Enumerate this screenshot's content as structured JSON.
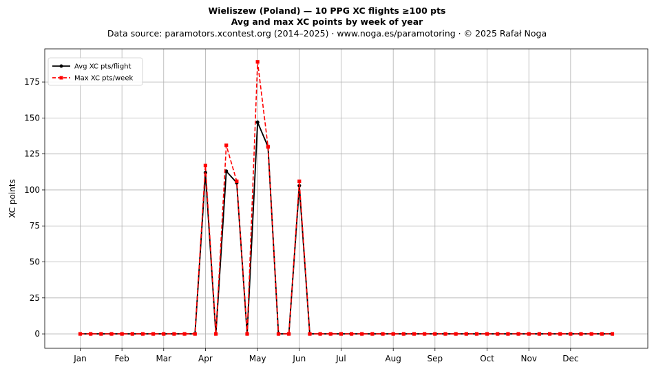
{
  "header": {
    "title": "Wieliszew (Poland)  —  10 PPG XC flights ≥100 pts",
    "subtitle": "Avg and max XC points by week of year",
    "source": "Data source: paramotors.xcontest.org (2014–2025)  ·  www.noga.es/paramotoring  ·  © 2025 Rafał Noga"
  },
  "chart_data": {
    "type": "line",
    "title": "Wieliszew (Poland)  —  10 PPG XC flights ≥100 pts",
    "subtitle": "Avg and max XC points by week of year",
    "xlabel": "",
    "ylabel": "XC points",
    "ylim": [
      -10,
      198
    ],
    "yticks": [
      0,
      25,
      50,
      75,
      100,
      125,
      150,
      175
    ],
    "xlim": [
      -2.4,
      55.4
    ],
    "x": [
      1,
      2,
      3,
      4,
      5,
      6,
      7,
      8,
      9,
      10,
      11,
      12,
      13,
      14,
      15,
      16,
      17,
      18,
      19,
      20,
      21,
      22,
      23,
      24,
      25,
      26,
      27,
      28,
      29,
      30,
      31,
      32,
      33,
      34,
      35,
      36,
      37,
      38,
      39,
      40,
      41,
      42,
      43,
      44,
      45,
      46,
      47,
      48,
      49,
      50,
      51,
      52
    ],
    "month_ticks": [
      {
        "label": "Jan",
        "week": 1
      },
      {
        "label": "Feb",
        "week": 5
      },
      {
        "label": "Mar",
        "week": 9
      },
      {
        "label": "Apr",
        "week": 13
      },
      {
        "label": "May",
        "week": 18
      },
      {
        "label": "Jun",
        "week": 22
      },
      {
        "label": "Jul",
        "week": 26
      },
      {
        "label": "Aug",
        "week": 31
      },
      {
        "label": "Sep",
        "week": 35
      },
      {
        "label": "Oct",
        "week": 40
      },
      {
        "label": "Nov",
        "week": 44
      },
      {
        "label": "Dec",
        "week": 48
      }
    ],
    "grid": true,
    "legend_position": "top-left",
    "series": [
      {
        "name": "Avg XC pts/flight",
        "color": "#000000",
        "style": "solid",
        "marker": "circle",
        "values": [
          0,
          0,
          0,
          0,
          0,
          0,
          0,
          0,
          0,
          0,
          0,
          0,
          112,
          0,
          113,
          105,
          0,
          147,
          130,
          0,
          0,
          103,
          0,
          0,
          0,
          0,
          0,
          0,
          0,
          0,
          0,
          0,
          0,
          0,
          0,
          0,
          0,
          0,
          0,
          0,
          0,
          0,
          0,
          0,
          0,
          0,
          0,
          0,
          0,
          0,
          0,
          0
        ]
      },
      {
        "name": "Max XC pts/week",
        "color": "#ff0000",
        "style": "dashed",
        "marker": "square",
        "values": [
          0,
          0,
          0,
          0,
          0,
          0,
          0,
          0,
          0,
          0,
          0,
          0,
          117,
          0,
          131,
          106,
          0,
          189,
          130,
          0,
          0,
          106,
          0,
          0,
          0,
          0,
          0,
          0,
          0,
          0,
          0,
          0,
          0,
          0,
          0,
          0,
          0,
          0,
          0,
          0,
          0,
          0,
          0,
          0,
          0,
          0,
          0,
          0,
          0,
          0,
          0,
          0
        ]
      }
    ]
  }
}
